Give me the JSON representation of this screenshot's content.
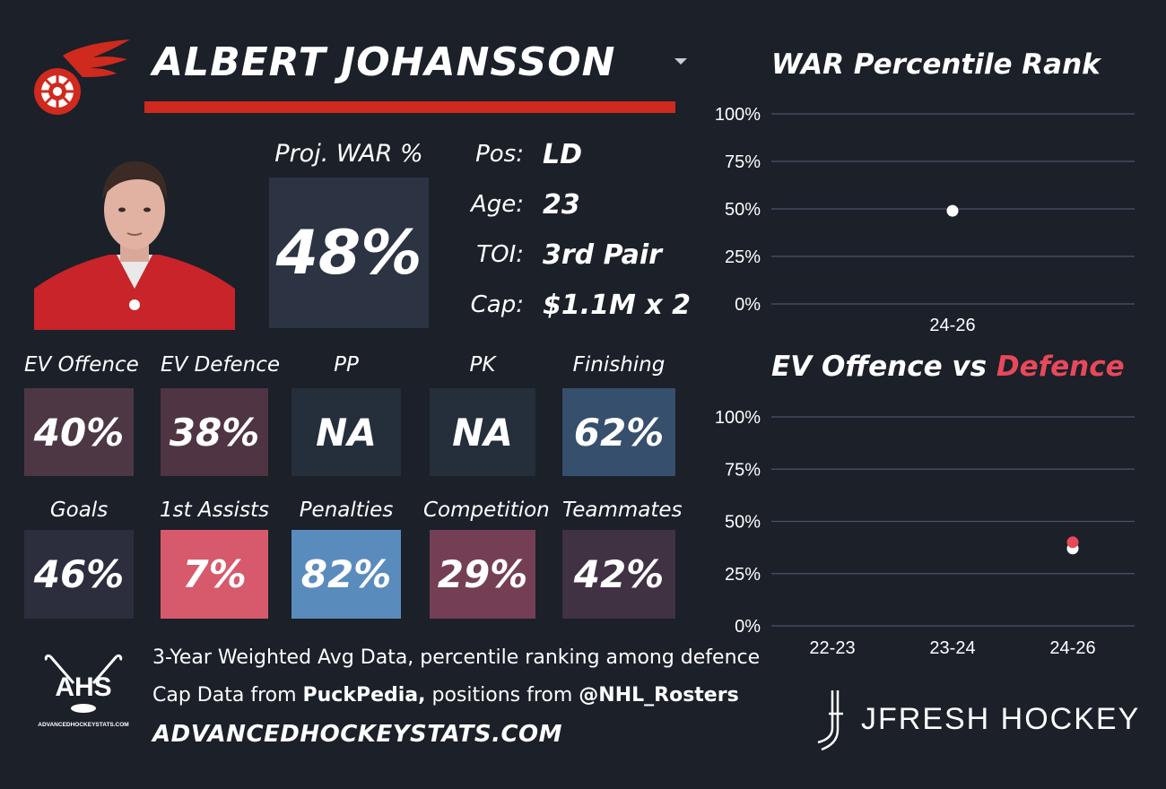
{
  "player": {
    "name": "ALBERT JOHANSSON"
  },
  "projection": {
    "label": "Proj. WAR %",
    "value": "48%"
  },
  "info": [
    {
      "key": "Pos:",
      "value": "LD"
    },
    {
      "key": "Age:",
      "value": "23"
    },
    {
      "key": "TOI:",
      "value": "3rd Pair"
    },
    {
      "key": "Cap:",
      "value": "$1.1M x 2"
    }
  ],
  "stats_row1": [
    {
      "label": "EV Offence",
      "value": "40%",
      "color": "#4d3745"
    },
    {
      "label": "EV Defence",
      "value": "38%",
      "color": "#4f3444"
    },
    {
      "label": "PP",
      "value": "NA",
      "color": "#252e3b"
    },
    {
      "label": "PK",
      "value": "NA",
      "color": "#252e3b"
    },
    {
      "label": "Finishing",
      "value": "62%",
      "color": "#364f6c"
    }
  ],
  "stats_row2": [
    {
      "label": "Goals",
      "value": "46%",
      "color": "#2c2d3d"
    },
    {
      "label": "1st Assists",
      "value": "7%",
      "color": "#d65a6b"
    },
    {
      "label": "Penalties",
      "value": "82%",
      "color": "#5a8bbd"
    },
    {
      "label": "Competition",
      "value": "29%",
      "color": "#743f55"
    },
    {
      "label": "Teammates",
      "value": "42%",
      "color": "#403143"
    }
  ],
  "footer": {
    "line1": "3-Year Weighted Avg Data, percentile ranking among defence",
    "line2_prefix": "Cap Data from ",
    "line2_bold1": "PuckPedia,",
    "line2_mid": " positions from ",
    "line2_bold2": "@NHL_Rosters",
    "site": "ADVANCEDHOCKEYSTATS.COM",
    "ahs_logo_text": "AHS",
    "ahs_logo_sub": "ADVANCEDHOCKEYSTATS.COM",
    "brand": "JFRESH HOCKEY"
  },
  "colors": {
    "background": "#1b2029",
    "accent_red": "#cf2a1d",
    "defence_red": "#e8495a",
    "gridline": "#4a5468"
  },
  "chart_data": [
    {
      "type": "scatter",
      "title": "WAR Percentile Rank",
      "categories": [
        "24-26"
      ],
      "series": [
        {
          "values": [
            49
          ],
          "color": "#ffffff"
        }
      ],
      "ylim": [
        0,
        100
      ],
      "yticks": [
        "0%",
        "25%",
        "50%",
        "75%",
        "100%"
      ],
      "grid": true
    },
    {
      "type": "scatter",
      "title_part1": "EV Offence vs ",
      "title_part2": "Defence",
      "categories": [
        "22-23",
        "23-24",
        "24-26"
      ],
      "series": [
        {
          "name": "EV Offence",
          "values": [
            null,
            null,
            37
          ],
          "color": "#ffffff"
        },
        {
          "name": "Defence",
          "values": [
            null,
            null,
            40
          ],
          "color": "#e8495a"
        }
      ],
      "ylim": [
        0,
        100
      ],
      "yticks": [
        "0%",
        "25%",
        "50%",
        "75%",
        "100%"
      ],
      "grid": true
    }
  ]
}
